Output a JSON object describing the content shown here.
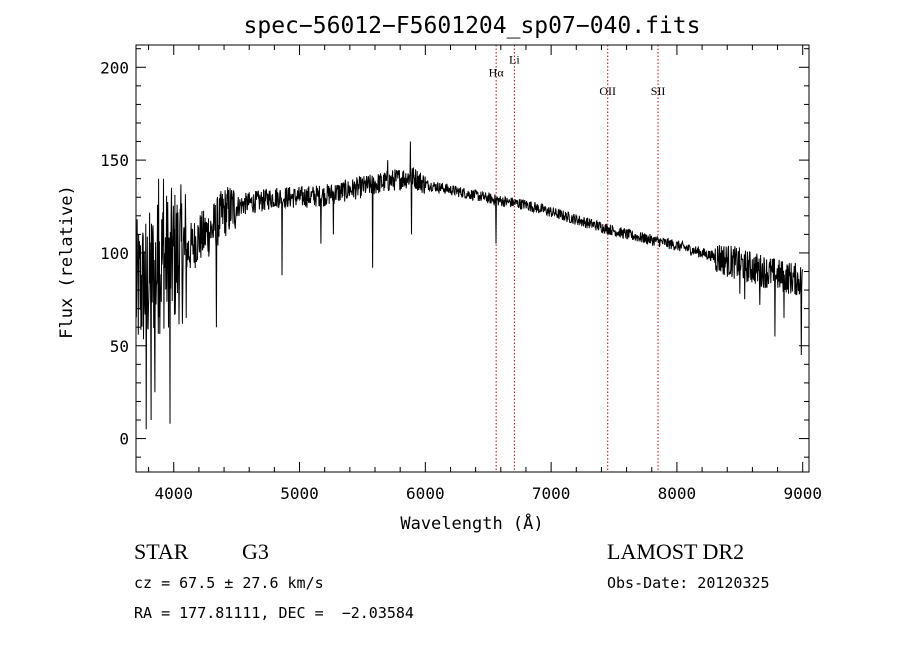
{
  "chart_data": {
    "type": "line",
    "title": "spec−56012−F5601204_sp07−040.fits",
    "xlabel": "Wavelength (Å)",
    "ylabel": "Flux (relative)",
    "xlim": [
      3700,
      9050
    ],
    "ylim": [
      -18,
      212
    ],
    "xticks": [
      4000,
      5000,
      6000,
      7000,
      8000,
      9000
    ],
    "yticks": [
      0,
      50,
      100,
      150,
      200
    ],
    "grid": false,
    "series_color": "#000000",
    "line_marker_color": "#cc0000",
    "continuum": [
      {
        "x": 3700,
        "y": 80
      },
      {
        "x": 3800,
        "y": 85
      },
      {
        "x": 3900,
        "y": 95
      },
      {
        "x": 4000,
        "y": 98
      },
      {
        "x": 4100,
        "y": 100
      },
      {
        "x": 4200,
        "y": 108
      },
      {
        "x": 4300,
        "y": 112
      },
      {
        "x": 4400,
        "y": 122
      },
      {
        "x": 4500,
        "y": 125
      },
      {
        "x": 4600,
        "y": 127
      },
      {
        "x": 4700,
        "y": 128
      },
      {
        "x": 4800,
        "y": 130
      },
      {
        "x": 5000,
        "y": 130
      },
      {
        "x": 5200,
        "y": 131
      },
      {
        "x": 5400,
        "y": 134
      },
      {
        "x": 5600,
        "y": 137
      },
      {
        "x": 5800,
        "y": 140
      },
      {
        "x": 5900,
        "y": 141
      },
      {
        "x": 6000,
        "y": 137
      },
      {
        "x": 6200,
        "y": 134
      },
      {
        "x": 6400,
        "y": 131
      },
      {
        "x": 6600,
        "y": 128
      },
      {
        "x": 6800,
        "y": 126
      },
      {
        "x": 7000,
        "y": 122
      },
      {
        "x": 7200,
        "y": 118
      },
      {
        "x": 7400,
        "y": 114
      },
      {
        "x": 7600,
        "y": 110
      },
      {
        "x": 7800,
        "y": 107
      },
      {
        "x": 8000,
        "y": 104
      },
      {
        "x": 8200,
        "y": 100
      },
      {
        "x": 8400,
        "y": 96
      },
      {
        "x": 8600,
        "y": 92
      },
      {
        "x": 8800,
        "y": 88
      },
      {
        "x": 9000,
        "y": 85
      }
    ],
    "absorption_features": [
      {
        "x": 3780,
        "y": 5
      },
      {
        "x": 3820,
        "y": 10
      },
      {
        "x": 3850,
        "y": 25
      },
      {
        "x": 3970,
        "y": 8
      },
      {
        "x": 4100,
        "y": 65
      },
      {
        "x": 4340,
        "y": 60
      },
      {
        "x": 4860,
        "y": 88
      },
      {
        "x": 5170,
        "y": 105
      },
      {
        "x": 5270,
        "y": 110
      },
      {
        "x": 5580,
        "y": 92
      },
      {
        "x": 5890,
        "y": 110
      },
      {
        "x": 6563,
        "y": 105
      },
      {
        "x": 8500,
        "y": 78
      },
      {
        "x": 8540,
        "y": 75
      },
      {
        "x": 8660,
        "y": 72
      },
      {
        "x": 8780,
        "y": 55
      },
      {
        "x": 8850,
        "y": 65
      },
      {
        "x": 8990,
        "y": 45
      }
    ],
    "emission_spikes": [
      {
        "x": 3880,
        "y": 140
      },
      {
        "x": 3920,
        "y": 140
      },
      {
        "x": 5880,
        "y": 160
      },
      {
        "x": 5700,
        "y": 150
      }
    ],
    "lines": [
      {
        "label_text": "Hα",
        "x": 6563,
        "label_y": 195
      },
      {
        "label_text": "Li",
        "x": 6708,
        "label_y": 202
      },
      {
        "label_text": "OII",
        "x": 7450,
        "label_y": 185
      },
      {
        "label_text": "SII",
        "x": 7850,
        "label_y": 185
      }
    ]
  },
  "info": {
    "class_label": "STAR",
    "subclass_label": "G3",
    "survey_label": "LAMOST DR2",
    "cz_text": "cz = 67.5 ± 27.6 km/s",
    "obsdate_text": "Obs-Date: 20120325",
    "radec_text": "RA = 177.81111, DEC =  −2.03584"
  }
}
